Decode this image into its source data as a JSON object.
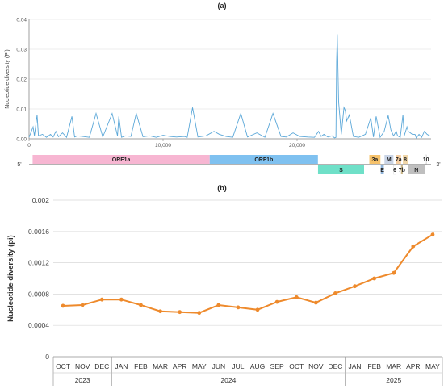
{
  "panels": {
    "a_label": "(a)",
    "b_label": "(b)"
  },
  "colors": {
    "pi_line": "#5aa7d8",
    "trend_line": "#ee8a2c",
    "axis": "#888888",
    "grid": "#d9d9d9",
    "orf1a": "#f7b6d2",
    "orf1b": "#7fc1f0",
    "S": "#6fe0c8",
    "orf3a": "#f6c26b",
    "M": "#c9d4e6",
    "orf7a": "#f5cda0",
    "orf8": "#f0d6a8",
    "orf10": "#f2f2f2",
    "E": "#8fb3d9",
    "orf6": "#ffffff",
    "orf7b": "#c7b58a",
    "N": "#bfbfbf"
  },
  "chart_data": [
    {
      "type": "line",
      "ylabel": "Nucleotide diversity (Pi)",
      "xlabel": "",
      "xlim": [
        0,
        30000
      ],
      "ylim": [
        0,
        0.04
      ],
      "x_ticks": [
        0,
        10000,
        20000
      ],
      "x_tick_labels": [
        "0",
        "10,000",
        "20,000"
      ],
      "y_ticks": [
        0,
        0.01,
        0.02,
        0.03,
        0.04
      ],
      "y_tick_labels": [
        "0.00",
        "0.01",
        "0.02",
        "0.03",
        "0.04"
      ],
      "grid": "horizontal",
      "series": [
        {
          "x": [
            0,
            300,
            400,
            600,
            700,
            1000,
            1300,
            1600,
            1800,
            2000,
            2200,
            2500,
            2800,
            3200,
            3400,
            3600,
            4000,
            4500,
            5000,
            5500,
            6200,
            6600,
            6700,
            6900,
            7200,
            7600,
            8000,
            8500,
            9000,
            9500,
            10000,
            10500,
            11000,
            11600,
            11800,
            12200,
            12600,
            13200,
            13800,
            14200,
            14700,
            15200,
            15800,
            16300,
            17000,
            17600,
            18200,
            18800,
            19200,
            19700,
            20200,
            20800,
            21300,
            21600,
            21800,
            22000,
            22300,
            22600,
            22800,
            22900,
            22950,
            23000,
            23100,
            23300,
            23500,
            23600,
            23700,
            23900,
            24200,
            24600,
            25100,
            25500,
            25700,
            25900,
            26200,
            26500,
            26800,
            27000,
            27200,
            27400,
            27500,
            27700,
            27900,
            28000,
            28200,
            28300,
            28600,
            28800,
            28900,
            29100,
            29300,
            29500,
            29700,
            29900
          ],
          "values": [
            0.0005,
            0.004,
            0.001,
            0.008,
            0.001,
            0.0015,
            0.0005,
            0.0015,
            0.0006,
            0.0025,
            0.0007,
            0.002,
            0.0005,
            0.0075,
            0.0006,
            0.001,
            0.0008,
            0.0005,
            0.0085,
            0.0006,
            0.0085,
            0.001,
            0.0075,
            0.0005,
            0.001,
            0.0008,
            0.0085,
            0.0007,
            0.001,
            0.0005,
            0.0012,
            0.0008,
            0.0006,
            0.0008,
            0.0005,
            0.0105,
            0.0006,
            0.001,
            0.0025,
            0.0015,
            0.0008,
            0.0005,
            0.0085,
            0.0006,
            0.002,
            0.0005,
            0.0085,
            0.0008,
            0.0006,
            0.002,
            0.0008,
            0.0006,
            0.0005,
            0.0025,
            0.0008,
            0.0015,
            0.0006,
            0.001,
            0.0003,
            0.0005,
            0.026,
            0.035,
            0.0125,
            0.0015,
            0.0105,
            0.0095,
            0.006,
            0.008,
            0.0008,
            0.0005,
            0.0015,
            0.007,
            0.0006,
            0.0075,
            0.0005,
            0.0025,
            0.0078,
            0.003,
            0.001,
            0.0025,
            0.001,
            0.0005,
            0.008,
            0.001,
            0.004,
            0.0025,
            0.0015,
            0.0015,
            0.0003,
            0.0015,
            0.0005,
            0.0025,
            0.0015,
            0.001
          ]
        }
      ]
    },
    {
      "type": "line",
      "ylabel": "Nucleotide diversity (pi)",
      "xlabel": "",
      "ylim": [
        0,
        0.002
      ],
      "y_ticks": [
        0,
        0.0004,
        0.0008,
        0.0012,
        0.0016,
        0.002
      ],
      "y_tick_labels": [
        "0",
        "0.0004",
        "0.0008",
        "0.0012",
        "0.0016",
        "0.002"
      ],
      "grid": "horizontal",
      "categories": [
        "OCT",
        "NOV",
        "DEC",
        "JAN",
        "FEB",
        "MAR",
        "APR",
        "MAY",
        "JUN",
        "JUL",
        "AUG",
        "SEP",
        "OCT",
        "NOV",
        "DEC",
        "JAN",
        "FEB",
        "MAR",
        "APR",
        "MAY"
      ],
      "year_groups": [
        {
          "label": "2023",
          "start": 0,
          "end": 2
        },
        {
          "label": "2024",
          "start": 3,
          "end": 14
        },
        {
          "label": "2025",
          "start": 15,
          "end": 19
        }
      ],
      "series": [
        {
          "values": [
            0.00065,
            0.00066,
            0.00073,
            0.00073,
            0.00066,
            0.00058,
            0.00057,
            0.00056,
            0.00066,
            0.00063,
            0.0006,
            0.0007,
            0.00076,
            0.00069,
            0.00081,
            0.0009,
            0.001,
            0.00107,
            0.00141,
            0.00156
          ]
        }
      ]
    }
  ],
  "genome_map": {
    "five_prime": "5'",
    "three_prime": "3'",
    "genes": [
      {
        "id": "orf1a",
        "label": "ORF1a",
        "start": 266,
        "end": 13480,
        "row": "top",
        "show_label": true
      },
      {
        "id": "orf1b",
        "label": "ORF1b",
        "start": 13480,
        "end": 21555,
        "row": "top",
        "show_label": true
      },
      {
        "id": "S",
        "label": "S",
        "start": 21563,
        "end": 25000,
        "row": "bottom",
        "show_label": true
      },
      {
        "id": "orf3a",
        "label": "3a",
        "start": 25393,
        "end": 26220,
        "row": "top",
        "show_label": true
      },
      {
        "id": "E",
        "label": "E",
        "start": 26245,
        "end": 26472,
        "row": "bottom",
        "show_label": true
      },
      {
        "id": "M",
        "label": "M",
        "start": 26523,
        "end": 27191,
        "row": "top",
        "show_label": true
      },
      {
        "id": "orf6",
        "label": "6",
        "start": 27202,
        "end": 27387,
        "row": "bottom",
        "show_label": true
      },
      {
        "id": "orf7a",
        "label": "7a",
        "start": 27394,
        "end": 27759,
        "row": "top",
        "show_label": true
      },
      {
        "id": "orf7b",
        "label": "7b",
        "start": 27756,
        "end": 27887,
        "row": "bottom",
        "show_label": true
      },
      {
        "id": "orf8",
        "label": "8",
        "start": 27894,
        "end": 28259,
        "row": "top",
        "show_label": true
      },
      {
        "id": "N",
        "label": "N",
        "start": 28274,
        "end": 29533,
        "row": "bottom",
        "show_label": true
      },
      {
        "id": "orf10",
        "label": "10",
        "start": 29558,
        "end": 29674,
        "row": "top",
        "show_label": true
      }
    ]
  }
}
